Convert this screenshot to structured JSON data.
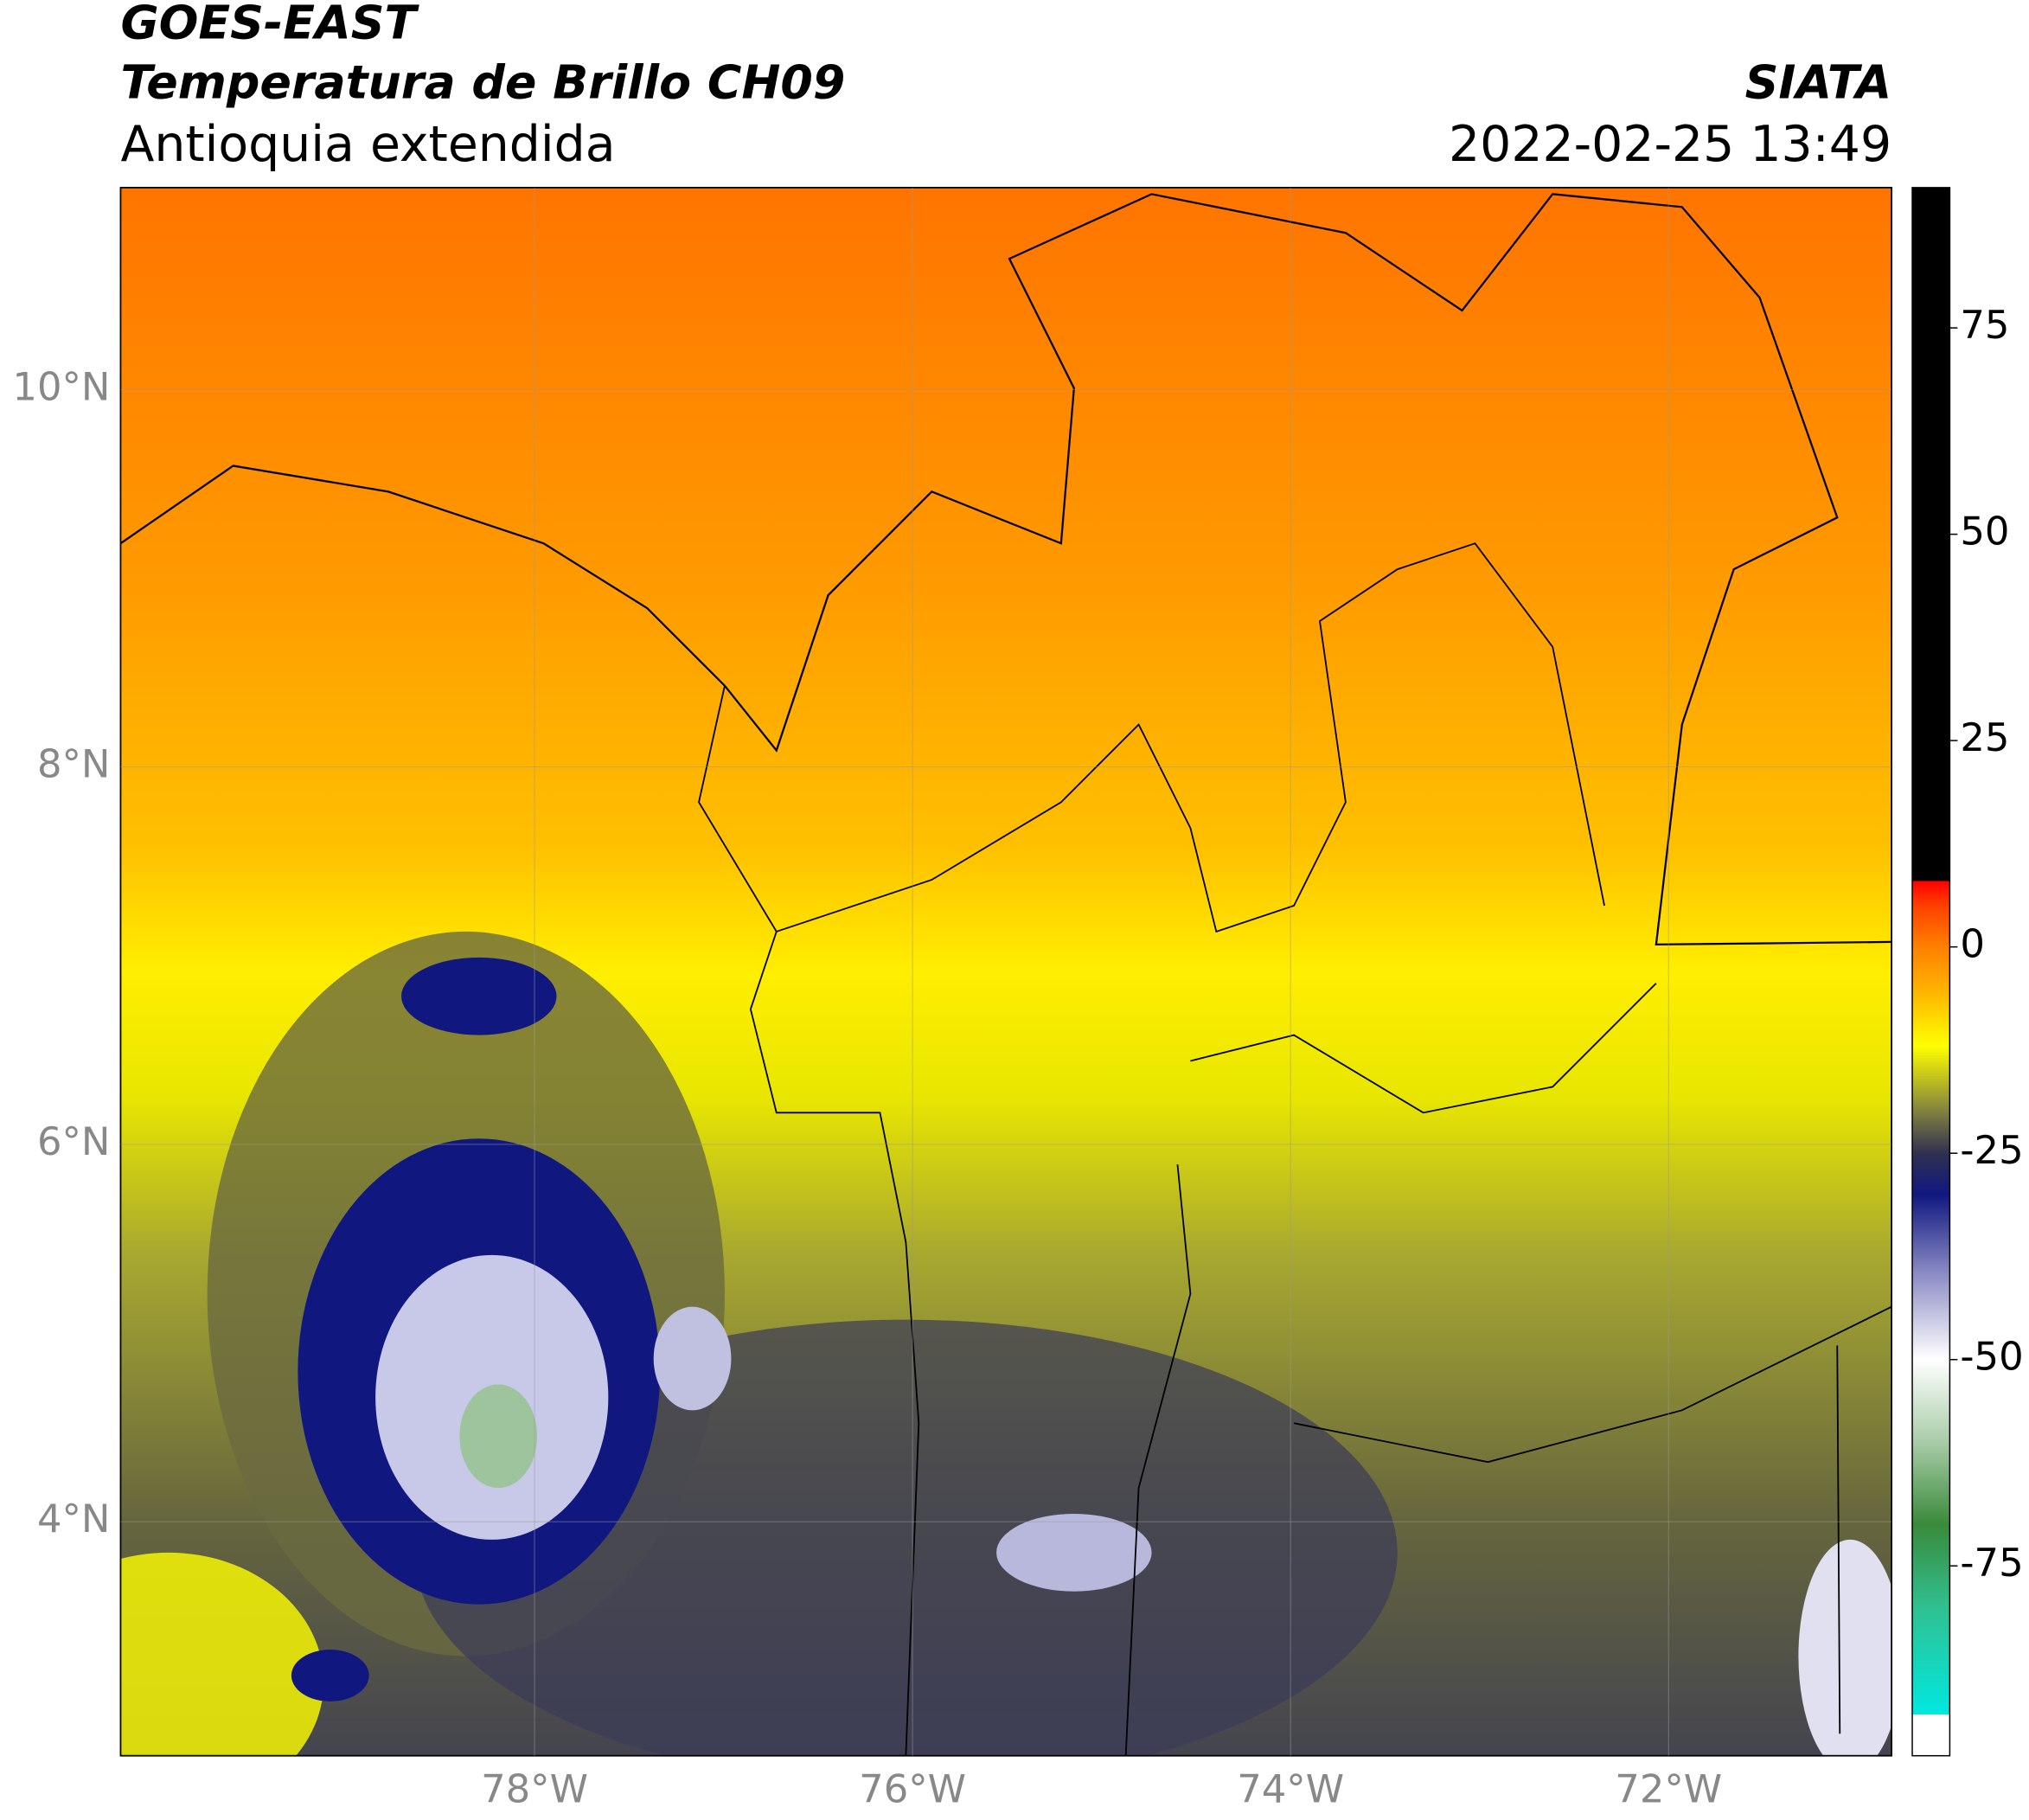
{
  "header": {
    "title": "GOES-EAST",
    "subtitle": "Temperatura de Brillo CH09",
    "region": "Antioquia extendida",
    "source": "SIATA",
    "datetime": "2022-02-25 13:49"
  },
  "map": {
    "xlim": [
      -80.19,
      -70.82
    ],
    "ylim": [
      2.76,
      11.07
    ],
    "grid": true,
    "xticks": [
      {
        "value": -78,
        "label": "78°W"
      },
      {
        "value": -76,
        "label": "76°W"
      },
      {
        "value": -74,
        "label": "74°W"
      },
      {
        "value": -72,
        "label": "72°W"
      }
    ],
    "yticks": [
      {
        "value": 4,
        "label": "4°N"
      },
      {
        "value": 6,
        "label": "6°N"
      },
      {
        "value": 8,
        "label": "8°N"
      },
      {
        "value": 10,
        "label": "10°N"
      }
    ]
  },
  "colorbar": {
    "lim": [
      -98,
      92
    ],
    "ticks": [
      75,
      50,
      25,
      0,
      -25,
      -50,
      -75
    ],
    "stops": [
      [
        -98,
        "#ffffff"
      ],
      [
        -93,
        "#ffffff"
      ],
      [
        -93,
        "#00e8e0"
      ],
      [
        -80,
        "#30c090"
      ],
      [
        -70,
        "#3a8a3a"
      ],
      [
        -60,
        "#a8cca8"
      ],
      [
        -50,
        "#ffffff"
      ],
      [
        -40,
        "#9090c8"
      ],
      [
        -30,
        "#101880"
      ],
      [
        -25,
        "#303050"
      ],
      [
        -20,
        "#808040"
      ],
      [
        -12,
        "#ffff00"
      ],
      [
        -5,
        "#ffb000"
      ],
      [
        0,
        "#ff8000"
      ],
      [
        5,
        "#ff4000"
      ],
      [
        8,
        "#ff0000"
      ],
      [
        8,
        "#000000"
      ],
      [
        92,
        "#000000"
      ]
    ]
  }
}
